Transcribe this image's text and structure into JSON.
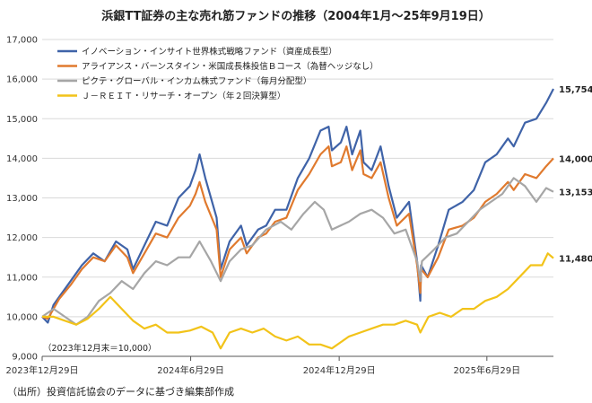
{
  "title": "浜銀TT証券の主な売れ筋ファンドの推移（2004年1月～25年9月19日）",
  "source": "（出所）投資信託協会のデータに基づき編集部作成",
  "chart_data": {
    "type": "line",
    "ylim": [
      9000,
      17000
    ],
    "yticks": [
      9000,
      10000,
      11000,
      12000,
      13000,
      14000,
      15000,
      16000,
      17000
    ],
    "ytick_labels": [
      "9,000",
      "10,000",
      "11,000",
      "12,000",
      "13,000",
      "14,000",
      "15,000",
      "16,000",
      "17,000"
    ],
    "xlim": [
      "2023-12-29",
      "2025-09-19"
    ],
    "xticks": [
      "2023-12-29",
      "2024-06-29",
      "2024-12-29",
      "2025-06-29"
    ],
    "xtick_labels": [
      "2023年12月29日",
      "2024年6月29日",
      "2024年12月29日",
      "2025年6月29日"
    ],
    "grid": true,
    "legend_position": "top-left",
    "base_note": "（2023年12月末＝10,000）",
    "series": [
      {
        "name": "イノベーション・インサイト世界株式戦略ファンド（資産成長型）",
        "color": "#3F63A8",
        "end_label": "15,754",
        "points": [
          [
            "2023-12-29",
            10000
          ],
          [
            "2024-01-05",
            9850
          ],
          [
            "2024-01-12",
            10300
          ],
          [
            "2024-01-19",
            10500
          ],
          [
            "2024-02-02",
            10900
          ],
          [
            "2024-02-16",
            11300
          ],
          [
            "2024-03-01",
            11600
          ],
          [
            "2024-03-15",
            11400
          ],
          [
            "2024-03-29",
            11900
          ],
          [
            "2024-04-12",
            11700
          ],
          [
            "2024-04-19",
            11200
          ],
          [
            "2024-05-03",
            11800
          ],
          [
            "2024-05-17",
            12400
          ],
          [
            "2024-05-31",
            12300
          ],
          [
            "2024-06-14",
            13000
          ],
          [
            "2024-06-28",
            13300
          ],
          [
            "2024-07-05",
            13700
          ],
          [
            "2024-07-10",
            14100
          ],
          [
            "2024-07-17",
            13500
          ],
          [
            "2024-07-31",
            12500
          ],
          [
            "2024-08-05",
            11200
          ],
          [
            "2024-08-16",
            11900
          ],
          [
            "2024-08-30",
            12300
          ],
          [
            "2024-09-06",
            11800
          ],
          [
            "2024-09-20",
            12200
          ],
          [
            "2024-09-30",
            12300
          ],
          [
            "2024-10-11",
            12700
          ],
          [
            "2024-10-25",
            12700
          ],
          [
            "2024-11-08",
            13500
          ],
          [
            "2024-11-22",
            14000
          ],
          [
            "2024-12-06",
            14700
          ],
          [
            "2024-12-16",
            14800
          ],
          [
            "2024-12-20",
            14200
          ],
          [
            "2024-12-31",
            14400
          ],
          [
            "2025-01-07",
            14800
          ],
          [
            "2025-01-14",
            14100
          ],
          [
            "2025-01-24",
            14700
          ],
          [
            "2025-01-28",
            13900
          ],
          [
            "2025-02-07",
            13700
          ],
          [
            "2025-02-18",
            14300
          ],
          [
            "2025-02-28",
            13300
          ],
          [
            "2025-03-10",
            12500
          ],
          [
            "2025-03-25",
            12900
          ],
          [
            "2025-04-04",
            11400
          ],
          [
            "2025-04-08",
            10400
          ],
          [
            "2025-04-09",
            11300
          ],
          [
            "2025-04-17",
            11000
          ],
          [
            "2025-04-30",
            11800
          ],
          [
            "2025-05-13",
            12700
          ],
          [
            "2025-05-30",
            12900
          ],
          [
            "2025-06-13",
            13200
          ],
          [
            "2025-06-27",
            13900
          ],
          [
            "2025-07-11",
            14100
          ],
          [
            "2025-07-25",
            14500
          ],
          [
            "2025-08-01",
            14300
          ],
          [
            "2025-08-15",
            14900
          ],
          [
            "2025-08-29",
            15000
          ],
          [
            "2025-09-10",
            15400
          ],
          [
            "2025-09-19",
            15754
          ]
        ]
      },
      {
        "name": "アライアンス・バーンスタイン・米国成長株投信Ｂコース（為替ヘッジなし）",
        "color": "#E07A2E",
        "end_label": "14,000",
        "points": [
          [
            "2023-12-29",
            10000
          ],
          [
            "2024-01-05",
            9950
          ],
          [
            "2024-01-12",
            10200
          ],
          [
            "2024-01-19",
            10450
          ],
          [
            "2024-02-02",
            10800
          ],
          [
            "2024-02-16",
            11200
          ],
          [
            "2024-03-01",
            11500
          ],
          [
            "2024-03-15",
            11400
          ],
          [
            "2024-03-29",
            11800
          ],
          [
            "2024-04-12",
            11500
          ],
          [
            "2024-04-19",
            11100
          ],
          [
            "2024-05-03",
            11600
          ],
          [
            "2024-05-17",
            12100
          ],
          [
            "2024-05-31",
            12000
          ],
          [
            "2024-06-14",
            12500
          ],
          [
            "2024-06-28",
            12800
          ],
          [
            "2024-07-05",
            13100
          ],
          [
            "2024-07-10",
            13400
          ],
          [
            "2024-07-17",
            12900
          ],
          [
            "2024-07-31",
            12200
          ],
          [
            "2024-08-05",
            11000
          ],
          [
            "2024-08-16",
            11700
          ],
          [
            "2024-08-30",
            12000
          ],
          [
            "2024-09-06",
            11600
          ],
          [
            "2024-09-20",
            12000
          ],
          [
            "2024-09-30",
            12100
          ],
          [
            "2024-10-11",
            12400
          ],
          [
            "2024-10-25",
            12500
          ],
          [
            "2024-11-08",
            13200
          ],
          [
            "2024-11-22",
            13600
          ],
          [
            "2024-12-06",
            14100
          ],
          [
            "2024-12-16",
            14300
          ],
          [
            "2024-12-20",
            13800
          ],
          [
            "2024-12-31",
            13900
          ],
          [
            "2025-01-07",
            14300
          ],
          [
            "2025-01-14",
            13700
          ],
          [
            "2025-01-24",
            14200
          ],
          [
            "2025-01-28",
            13600
          ],
          [
            "2025-02-07",
            13500
          ],
          [
            "2025-02-18",
            13900
          ],
          [
            "2025-02-28",
            13000
          ],
          [
            "2025-03-10",
            12300
          ],
          [
            "2025-03-25",
            12600
          ],
          [
            "2025-04-04",
            11300
          ],
          [
            "2025-04-08",
            10600
          ],
          [
            "2025-04-09",
            11200
          ],
          [
            "2025-04-17",
            11000
          ],
          [
            "2025-04-30",
            11500
          ],
          [
            "2025-05-13",
            12200
          ],
          [
            "2025-05-30",
            12300
          ],
          [
            "2025-06-13",
            12500
          ],
          [
            "2025-06-27",
            12900
          ],
          [
            "2025-07-11",
            13100
          ],
          [
            "2025-07-25",
            13400
          ],
          [
            "2025-08-01",
            13200
          ],
          [
            "2025-08-15",
            13600
          ],
          [
            "2025-08-29",
            13500
          ],
          [
            "2025-09-10",
            13800
          ],
          [
            "2025-09-19",
            14000
          ]
        ]
      },
      {
        "name": "ピクテ・グローバル・インカム株式ファンド（毎月分配型）",
        "color": "#A6A6A6",
        "end_label": "13,153",
        "points": [
          [
            "2023-12-29",
            10000
          ],
          [
            "2024-01-12",
            10200
          ],
          [
            "2024-01-26",
            10000
          ],
          [
            "2024-02-09",
            9800
          ],
          [
            "2024-02-23",
            10000
          ],
          [
            "2024-03-08",
            10400
          ],
          [
            "2024-03-22",
            10600
          ],
          [
            "2024-04-05",
            10900
          ],
          [
            "2024-04-19",
            10700
          ],
          [
            "2024-05-03",
            11100
          ],
          [
            "2024-05-17",
            11400
          ],
          [
            "2024-05-31",
            11300
          ],
          [
            "2024-06-14",
            11500
          ],
          [
            "2024-06-28",
            11500
          ],
          [
            "2024-07-10",
            11900
          ],
          [
            "2024-07-24",
            11400
          ],
          [
            "2024-08-05",
            10900
          ],
          [
            "2024-08-16",
            11400
          ],
          [
            "2024-08-30",
            11700
          ],
          [
            "2024-09-13",
            11800
          ],
          [
            "2024-09-30",
            12200
          ],
          [
            "2024-10-18",
            12400
          ],
          [
            "2024-10-31",
            12200
          ],
          [
            "2024-11-15",
            12600
          ],
          [
            "2024-11-29",
            12900
          ],
          [
            "2024-12-10",
            12700
          ],
          [
            "2024-12-20",
            12200
          ],
          [
            "2025-01-10",
            12400
          ],
          [
            "2025-01-24",
            12600
          ],
          [
            "2025-02-07",
            12700
          ],
          [
            "2025-02-21",
            12500
          ],
          [
            "2025-03-07",
            12100
          ],
          [
            "2025-03-21",
            12200
          ],
          [
            "2025-04-04",
            11400
          ],
          [
            "2025-04-08",
            10900
          ],
          [
            "2025-04-10",
            11400
          ],
          [
            "2025-04-25",
            11700
          ],
          [
            "2025-05-09",
            12000
          ],
          [
            "2025-05-23",
            12100
          ],
          [
            "2025-06-06",
            12400
          ],
          [
            "2025-06-20",
            12700
          ],
          [
            "2025-07-04",
            12900
          ],
          [
            "2025-07-18",
            13100
          ],
          [
            "2025-08-01",
            13500
          ],
          [
            "2025-08-15",
            13300
          ],
          [
            "2025-08-29",
            12900
          ],
          [
            "2025-09-10",
            13250
          ],
          [
            "2025-09-19",
            13153
          ]
        ]
      },
      {
        "name": "Ｊ－ＲＥＩＴ・リサーチ・オープン（年２回決算型）",
        "color": "#F2C319",
        "end_label": "11,480",
        "points": [
          [
            "2023-12-29",
            10000
          ],
          [
            "2024-01-12",
            10000
          ],
          [
            "2024-01-26",
            9900
          ],
          [
            "2024-02-09",
            9800
          ],
          [
            "2024-02-23",
            9950
          ],
          [
            "2024-03-08",
            10200
          ],
          [
            "2024-03-22",
            10500
          ],
          [
            "2024-04-05",
            10200
          ],
          [
            "2024-04-19",
            9900
          ],
          [
            "2024-05-03",
            9700
          ],
          [
            "2024-05-17",
            9800
          ],
          [
            "2024-05-31",
            9600
          ],
          [
            "2024-06-14",
            9600
          ],
          [
            "2024-06-28",
            9650
          ],
          [
            "2024-07-12",
            9750
          ],
          [
            "2024-07-26",
            9600
          ],
          [
            "2024-08-05",
            9200
          ],
          [
            "2024-08-16",
            9600
          ],
          [
            "2024-08-30",
            9700
          ],
          [
            "2024-09-13",
            9600
          ],
          [
            "2024-09-27",
            9700
          ],
          [
            "2024-10-11",
            9500
          ],
          [
            "2024-10-25",
            9400
          ],
          [
            "2024-11-08",
            9500
          ],
          [
            "2024-11-22",
            9300
          ],
          [
            "2024-12-06",
            9300
          ],
          [
            "2024-12-20",
            9200
          ],
          [
            "2025-01-10",
            9500
          ],
          [
            "2025-01-24",
            9600
          ],
          [
            "2025-02-07",
            9700
          ],
          [
            "2025-02-21",
            9800
          ],
          [
            "2025-03-07",
            9800
          ],
          [
            "2025-03-21",
            9900
          ],
          [
            "2025-04-04",
            9800
          ],
          [
            "2025-04-08",
            9600
          ],
          [
            "2025-04-18",
            10000
          ],
          [
            "2025-05-02",
            10100
          ],
          [
            "2025-05-16",
            10000
          ],
          [
            "2025-05-30",
            10200
          ],
          [
            "2025-06-13",
            10200
          ],
          [
            "2025-06-27",
            10400
          ],
          [
            "2025-07-11",
            10500
          ],
          [
            "2025-07-25",
            10700
          ],
          [
            "2025-08-08",
            11000
          ],
          [
            "2025-08-22",
            11300
          ],
          [
            "2025-09-05",
            11300
          ],
          [
            "2025-09-12",
            11600
          ],
          [
            "2025-09-19",
            11480
          ]
        ]
      }
    ]
  }
}
